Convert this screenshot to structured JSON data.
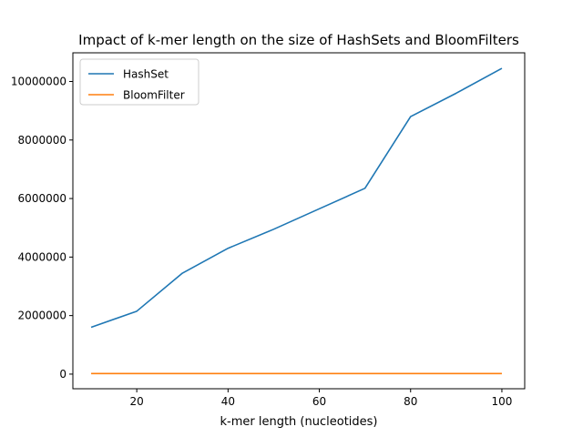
{
  "chart_data": {
    "type": "line",
    "title": "Impact of k-mer length on the size of HashSets and BloomFilters",
    "xlabel": "k-mer length (nucleotides)",
    "ylabel": "",
    "xlim": [
      6,
      105
    ],
    "ylim": [
      -500000,
      10980000
    ],
    "xticks": [
      20,
      40,
      60,
      80,
      100
    ],
    "yticks": [
      0,
      2000000,
      4000000,
      6000000,
      8000000,
      10000000
    ],
    "legend_position": "upper-left",
    "grid": false,
    "series": [
      {
        "name": "HashSet",
        "color": "#1f77b4",
        "x": [
          10,
          20,
          30,
          40,
          50,
          60,
          70,
          80,
          90,
          100
        ],
        "y": [
          1600000,
          2150000,
          3450000,
          4300000,
          4950000,
          5650000,
          6350000,
          8800000,
          9600000,
          10450000
        ]
      },
      {
        "name": "BloomFilter",
        "color": "#ff7f0e",
        "x": [
          10,
          20,
          30,
          40,
          50,
          60,
          70,
          80,
          90,
          100
        ],
        "y": [
          20000,
          20000,
          20000,
          20000,
          20000,
          20000,
          20000,
          20000,
          20000,
          20000
        ]
      }
    ]
  }
}
